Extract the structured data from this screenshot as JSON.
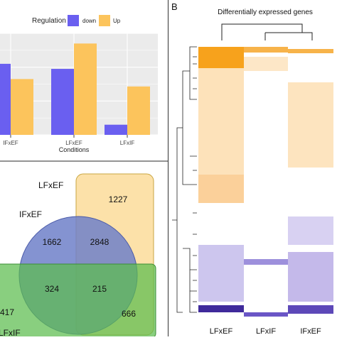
{
  "bar_panel": {
    "legend_title": "Regulation",
    "legend_items": [
      {
        "label": "down",
        "color": "#6a5ff0"
      },
      {
        "label": "Up",
        "color": "#fcc45c"
      }
    ],
    "xlabel": "Conditions"
  },
  "venn": {
    "sets": [
      {
        "label": "LFxEF",
        "color": "#fbd78c"
      },
      {
        "label": "IFxEF",
        "color": "#7a86c8"
      },
      {
        "label": "LFxIF",
        "color": "#6cc35c"
      }
    ],
    "regions": [
      {
        "value": "1227"
      },
      {
        "value": "1662"
      },
      {
        "value": "2848"
      },
      {
        "value": "324"
      },
      {
        "value": "215"
      },
      {
        "value": "417"
      },
      {
        "value": "666"
      }
    ]
  },
  "heatmap_panel": {
    "panel_letter": "B",
    "title": "Differentially expressed genes",
    "columns": [
      "LFxEF",
      "LFxIF",
      "IFxEF"
    ],
    "up_color": "#f5a623",
    "down_color": "#3f2a9b"
  },
  "chart_data": [
    {
      "type": "bar",
      "categories": [
        "IFxEF",
        "LFxEF",
        "LFxIF"
      ],
      "series": [
        {
          "name": "down",
          "values": [
            2100,
            1950,
            300
          ]
        },
        {
          "name": "Up",
          "values": [
            1650,
            2700,
            1430
          ]
        }
      ],
      "xlabel": "Conditions",
      "ylabel": "",
      "ylim": [
        0,
        3000
      ],
      "grid": true,
      "legend_placement": "top"
    },
    {
      "type": "heatmap",
      "columns": [
        "LFxEF",
        "LFxIF",
        "IFxEF"
      ],
      "title": "Differentially expressed genes"
    }
  ]
}
